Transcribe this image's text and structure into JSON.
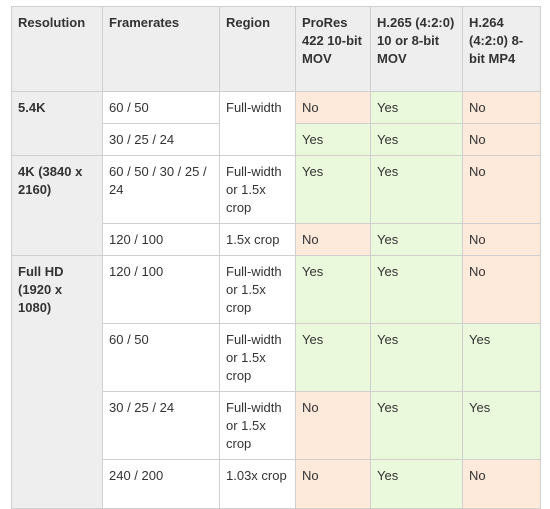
{
  "headers": {
    "resolution": "Resolution",
    "framerates": "Framerates",
    "region": "Region",
    "prores": "ProRes 422 10-bit MOV",
    "h265": "H.265 (4:2:0) 10 or 8-bit MOV",
    "h264": "H.264 (4:2:0) 8-bit MP4"
  },
  "groups": {
    "g54k": {
      "resolution": "5.4K",
      "rows": [
        {
          "framerates": "60 / 50",
          "region": "Full-width",
          "prores": "No",
          "h265": "Yes",
          "h264": "No"
        },
        {
          "framerates": "30 / 25 / 24",
          "prores": "Yes",
          "h265": "Yes",
          "h264": "No"
        }
      ]
    },
    "g4k": {
      "resolution": "4K (3840 x 2160)",
      "rows": [
        {
          "framerates": "60 / 50 / 30 / 25 / 24",
          "region": "Full-width or 1.5x crop",
          "prores": "Yes",
          "h265": "Yes",
          "h264": "No"
        },
        {
          "framerates": "120 / 100",
          "region": "1.5x crop",
          "prores": "No",
          "h265": "Yes",
          "h264": "No"
        }
      ]
    },
    "gfhd": {
      "resolution": "Full HD (1920 x 1080)",
      "rows": [
        {
          "framerates": "120 / 100",
          "region": "Full-width or 1.5x crop",
          "prores": "Yes",
          "h265": "Yes",
          "h264": "No"
        },
        {
          "framerates": "60 / 50",
          "region": "Full-width or 1.5x crop",
          "prores": "Yes",
          "h265": "Yes",
          "h264": "Yes"
        },
        {
          "framerates": "30 / 25 / 24",
          "region": "Full-width or 1.5x crop",
          "prores": "No",
          "h265": "Yes",
          "h264": "Yes"
        },
        {
          "framerates": "240 / 200",
          "region": "1.03x crop",
          "prores": "No",
          "h265": "Yes",
          "h264": "No"
        }
      ]
    }
  },
  "colors": {
    "header_bg": "#eeeeee",
    "yes_bg": "#eaf8dc",
    "no_bg": "#fdeadb",
    "border": "#cfcfcf",
    "text": "#333333"
  }
}
